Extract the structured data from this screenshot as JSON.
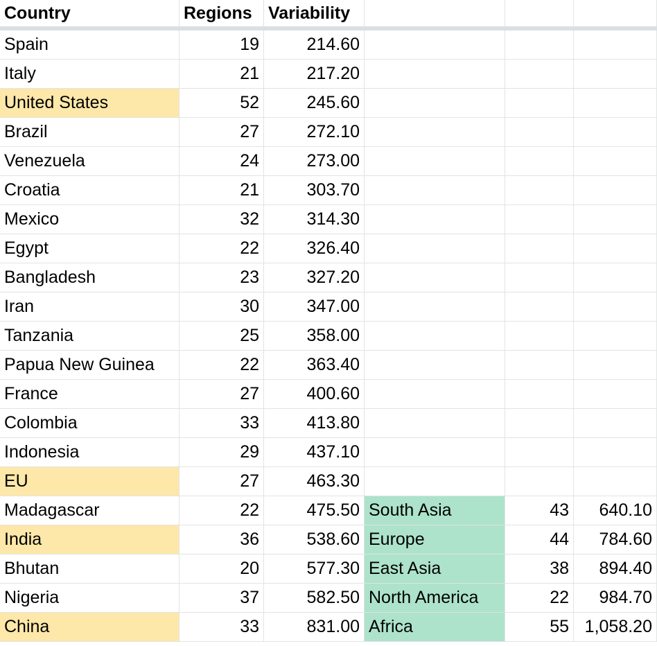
{
  "header": {
    "country": "Country",
    "regions": "Regions",
    "variability": "Variability"
  },
  "colors": {
    "highlight_yellow": "#fde7a9",
    "highlight_green": "#ade3cb",
    "gridline": "#e2e3e3",
    "freeze_bar": "#dadfe5"
  },
  "rows": [
    {
      "country": "Spain",
      "regions": "19",
      "variability": "214.60",
      "highlight": false,
      "group": "",
      "group_count": "",
      "group_value": ""
    },
    {
      "country": "Italy",
      "regions": "21",
      "variability": "217.20",
      "highlight": false,
      "group": "",
      "group_count": "",
      "group_value": ""
    },
    {
      "country": "United States",
      "regions": "52",
      "variability": "245.60",
      "highlight": true,
      "group": "",
      "group_count": "",
      "group_value": ""
    },
    {
      "country": "Brazil",
      "regions": "27",
      "variability": "272.10",
      "highlight": false,
      "group": "",
      "group_count": "",
      "group_value": ""
    },
    {
      "country": "Venezuela",
      "regions": "24",
      "variability": "273.00",
      "highlight": false,
      "group": "",
      "group_count": "",
      "group_value": ""
    },
    {
      "country": "Croatia",
      "regions": "21",
      "variability": "303.70",
      "highlight": false,
      "group": "",
      "group_count": "",
      "group_value": ""
    },
    {
      "country": "Mexico",
      "regions": "32",
      "variability": "314.30",
      "highlight": false,
      "group": "",
      "group_count": "",
      "group_value": ""
    },
    {
      "country": "Egypt",
      "regions": "22",
      "variability": "326.40",
      "highlight": false,
      "group": "",
      "group_count": "",
      "group_value": ""
    },
    {
      "country": "Bangladesh",
      "regions": "23",
      "variability": "327.20",
      "highlight": false,
      "group": "",
      "group_count": "",
      "group_value": ""
    },
    {
      "country": "Iran",
      "regions": "30",
      "variability": "347.00",
      "highlight": false,
      "group": "",
      "group_count": "",
      "group_value": ""
    },
    {
      "country": "Tanzania",
      "regions": "25",
      "variability": "358.00",
      "highlight": false,
      "group": "",
      "group_count": "",
      "group_value": ""
    },
    {
      "country": "Papua New Guinea",
      "regions": "22",
      "variability": "363.40",
      "highlight": false,
      "group": "",
      "group_count": "",
      "group_value": ""
    },
    {
      "country": "France",
      "regions": "27",
      "variability": "400.60",
      "highlight": false,
      "group": "",
      "group_count": "",
      "group_value": ""
    },
    {
      "country": "Colombia",
      "regions": "33",
      "variability": "413.80",
      "highlight": false,
      "group": "",
      "group_count": "",
      "group_value": ""
    },
    {
      "country": "Indonesia",
      "regions": "29",
      "variability": "437.10",
      "highlight": false,
      "group": "",
      "group_count": "",
      "group_value": ""
    },
    {
      "country": "EU",
      "regions": "27",
      "variability": "463.30",
      "highlight": true,
      "group": "",
      "group_count": "",
      "group_value": ""
    },
    {
      "country": "Madagascar",
      "regions": "22",
      "variability": "475.50",
      "highlight": false,
      "group": "South Asia",
      "group_count": "43",
      "group_value": "640.10"
    },
    {
      "country": "India",
      "regions": "36",
      "variability": "538.60",
      "highlight": true,
      "group": "Europe",
      "group_count": "44",
      "group_value": "784.60"
    },
    {
      "country": "Bhutan",
      "regions": "20",
      "variability": "577.30",
      "highlight": false,
      "group": "East Asia",
      "group_count": "38",
      "group_value": "894.40"
    },
    {
      "country": "Nigeria",
      "regions": "37",
      "variability": "582.50",
      "highlight": false,
      "group": "North America",
      "group_count": "22",
      "group_value": "984.70"
    },
    {
      "country": "China",
      "regions": "33",
      "variability": "831.00",
      "highlight": true,
      "group": "Africa",
      "group_count": "55",
      "group_value": "1,058.20"
    }
  ]
}
